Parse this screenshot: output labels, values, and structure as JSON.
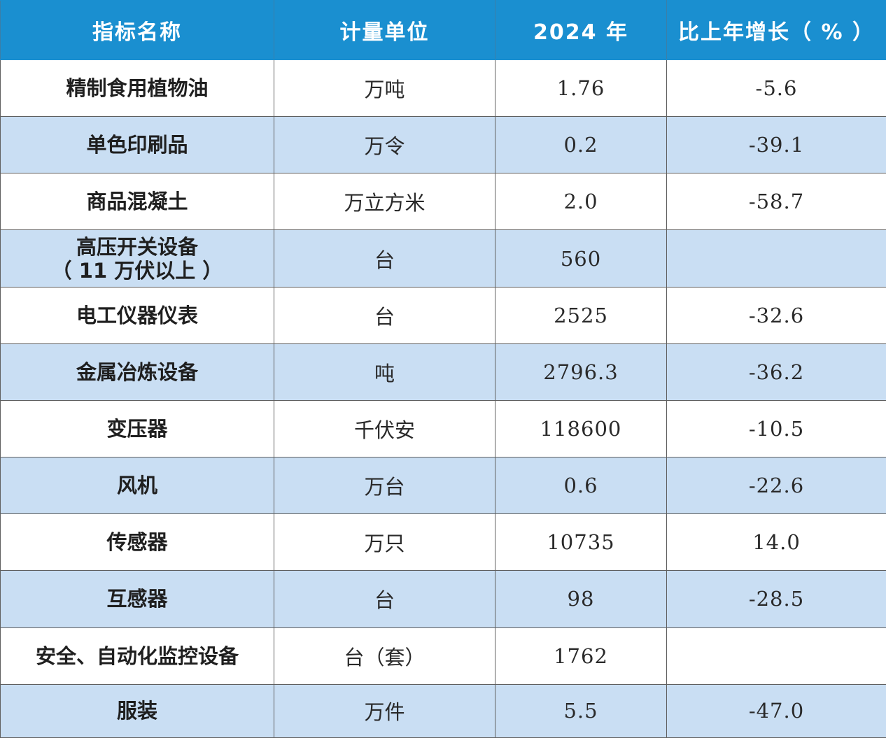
{
  "header": {
    "col_name": "指标名称",
    "col_unit": "计量单位",
    "col_value": "2024 年",
    "col_growth": "比上年增长（ % ）"
  },
  "rows": [
    {
      "name": "精制食用植物油",
      "unit": "万吨",
      "value": "1.76",
      "growth": "-5.6"
    },
    {
      "name": "单色印刷品",
      "unit": "万令",
      "value": "0.2",
      "growth": "-39.1"
    },
    {
      "name": "商品混凝土",
      "unit": "万立方米",
      "value": "2.0",
      "growth": "-58.7"
    },
    {
      "name": "高压开关设备",
      "name_line2": "（ 11 万伏以上 ）",
      "unit": "台",
      "value": "560",
      "growth": ""
    },
    {
      "name": "电工仪器仪表",
      "unit": "台",
      "value": "2525",
      "growth": "-32.6"
    },
    {
      "name": "金属冶炼设备",
      "unit": "吨",
      "value": "2796.3",
      "growth": "-36.2"
    },
    {
      "name": "变压器",
      "unit": "千伏安",
      "value": "118600",
      "growth": "-10.5"
    },
    {
      "name": "风机",
      "unit": "万台",
      "value": "0.6",
      "growth": "-22.6"
    },
    {
      "name": "传感器",
      "unit": "万只",
      "value": "10735",
      "growth": "14.0"
    },
    {
      "name": "互感器",
      "unit": "台",
      "value": "98",
      "growth": "-28.5"
    },
    {
      "name": "安全、自动化监控设备",
      "unit": "台（套）",
      "value": "1762",
      "growth": ""
    },
    {
      "name": "服装",
      "unit": "万件",
      "value": "5.5",
      "growth": "-47.0"
    }
  ],
  "colors": {
    "header_bg": "#1a8fd0",
    "stripe_bg": "#c9def3",
    "row_bg": "#ffffff"
  }
}
